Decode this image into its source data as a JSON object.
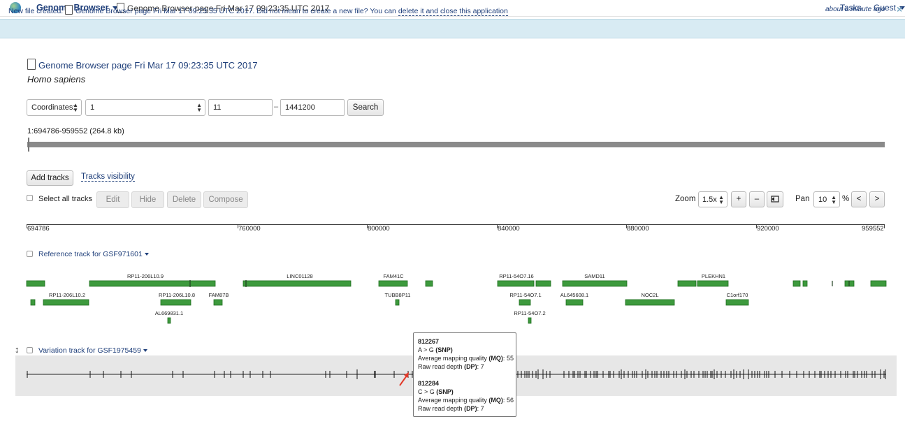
{
  "topbar": {
    "brand": "Genome Browser",
    "document_title": "Genome Browser page Fri Mar 17 09:23:35 UTC 2017",
    "tasks": "Tasks",
    "user": "Guest"
  },
  "notice": {
    "prefix": "New file created:",
    "file_name": "Genome Browser page Fri Mar 17 09:23:35 UTC 2017",
    "message": ". Did not mean to create a new file? You can ",
    "link": "delete it and close this application",
    "time": "about a minute ago",
    "close": "×"
  },
  "page": {
    "title": "Genome Browser page Fri Mar 17 09:23:35 UTC 2017",
    "species": "Homo sapiens"
  },
  "search": {
    "mode": "Coordinates:",
    "chromosome": "1",
    "start": "11",
    "separator": "–",
    "end": "1441200",
    "button": "Search"
  },
  "range": {
    "label": "1:694786-959552 (264.8 kb)"
  },
  "tracks_bar": {
    "add": "Add tracks",
    "visibility": "Tracks visibility"
  },
  "toolbar": {
    "select_all": "Select all tracks",
    "edit": "Edit",
    "hide": "Hide",
    "delete": "Delete",
    "compose": "Compose",
    "zoom_label": "Zoom",
    "zoom_value": "1.5x",
    "zoom_in": "+",
    "zoom_out": "–",
    "pan_label": "Pan",
    "pan_value": "10",
    "pan_unit": "%",
    "pan_left": "<",
    "pan_right": ">"
  },
  "ruler": {
    "ticks": [
      "694786",
      "760000",
      "800000",
      "840000",
      "880000",
      "920000",
      "959552"
    ]
  },
  "reference_track": {
    "title": "Reference track for GSF971601",
    "genes": [
      "RP11-206L10.9",
      "LINC01128",
      "FAM41C",
      "RP11-54O7.16",
      "SAMD11",
      "PLEKHN1",
      "RP11-206L10.2",
      "RP11-206L10.8",
      "FAM87B",
      "TUBB8P11",
      "RP11-54O7.1",
      "AL645608.1",
      "NOC2L",
      "C1orf170",
      "AL669831.1",
      "RP11-54O7.2"
    ]
  },
  "variation_track": {
    "title": "Variation track for GSF1975459"
  },
  "tooltip": {
    "variants": [
      {
        "id": "812267",
        "change": "A > G",
        "type": "SNP",
        "mq_label": "Average mapping quality",
        "mq_abbr": "MQ",
        "mq": "55",
        "dp_label": "Raw read depth",
        "dp_abbr": "DP",
        "dp": "7"
      },
      {
        "id": "812284",
        "change": "C > G",
        "type": "SNP",
        "mq_label": "Average mapping quality",
        "mq_abbr": "MQ",
        "mq": "56",
        "dp_label": "Raw read depth",
        "dp_abbr": "DP",
        "dp": "7"
      }
    ]
  },
  "colors": {
    "gene_fill": "#3d9a3d",
    "gene_stroke": "#1f6b1f",
    "link": "#1f3f7a",
    "notice_bg": "#d8ebf3",
    "pointer": "#e23a2a"
  }
}
